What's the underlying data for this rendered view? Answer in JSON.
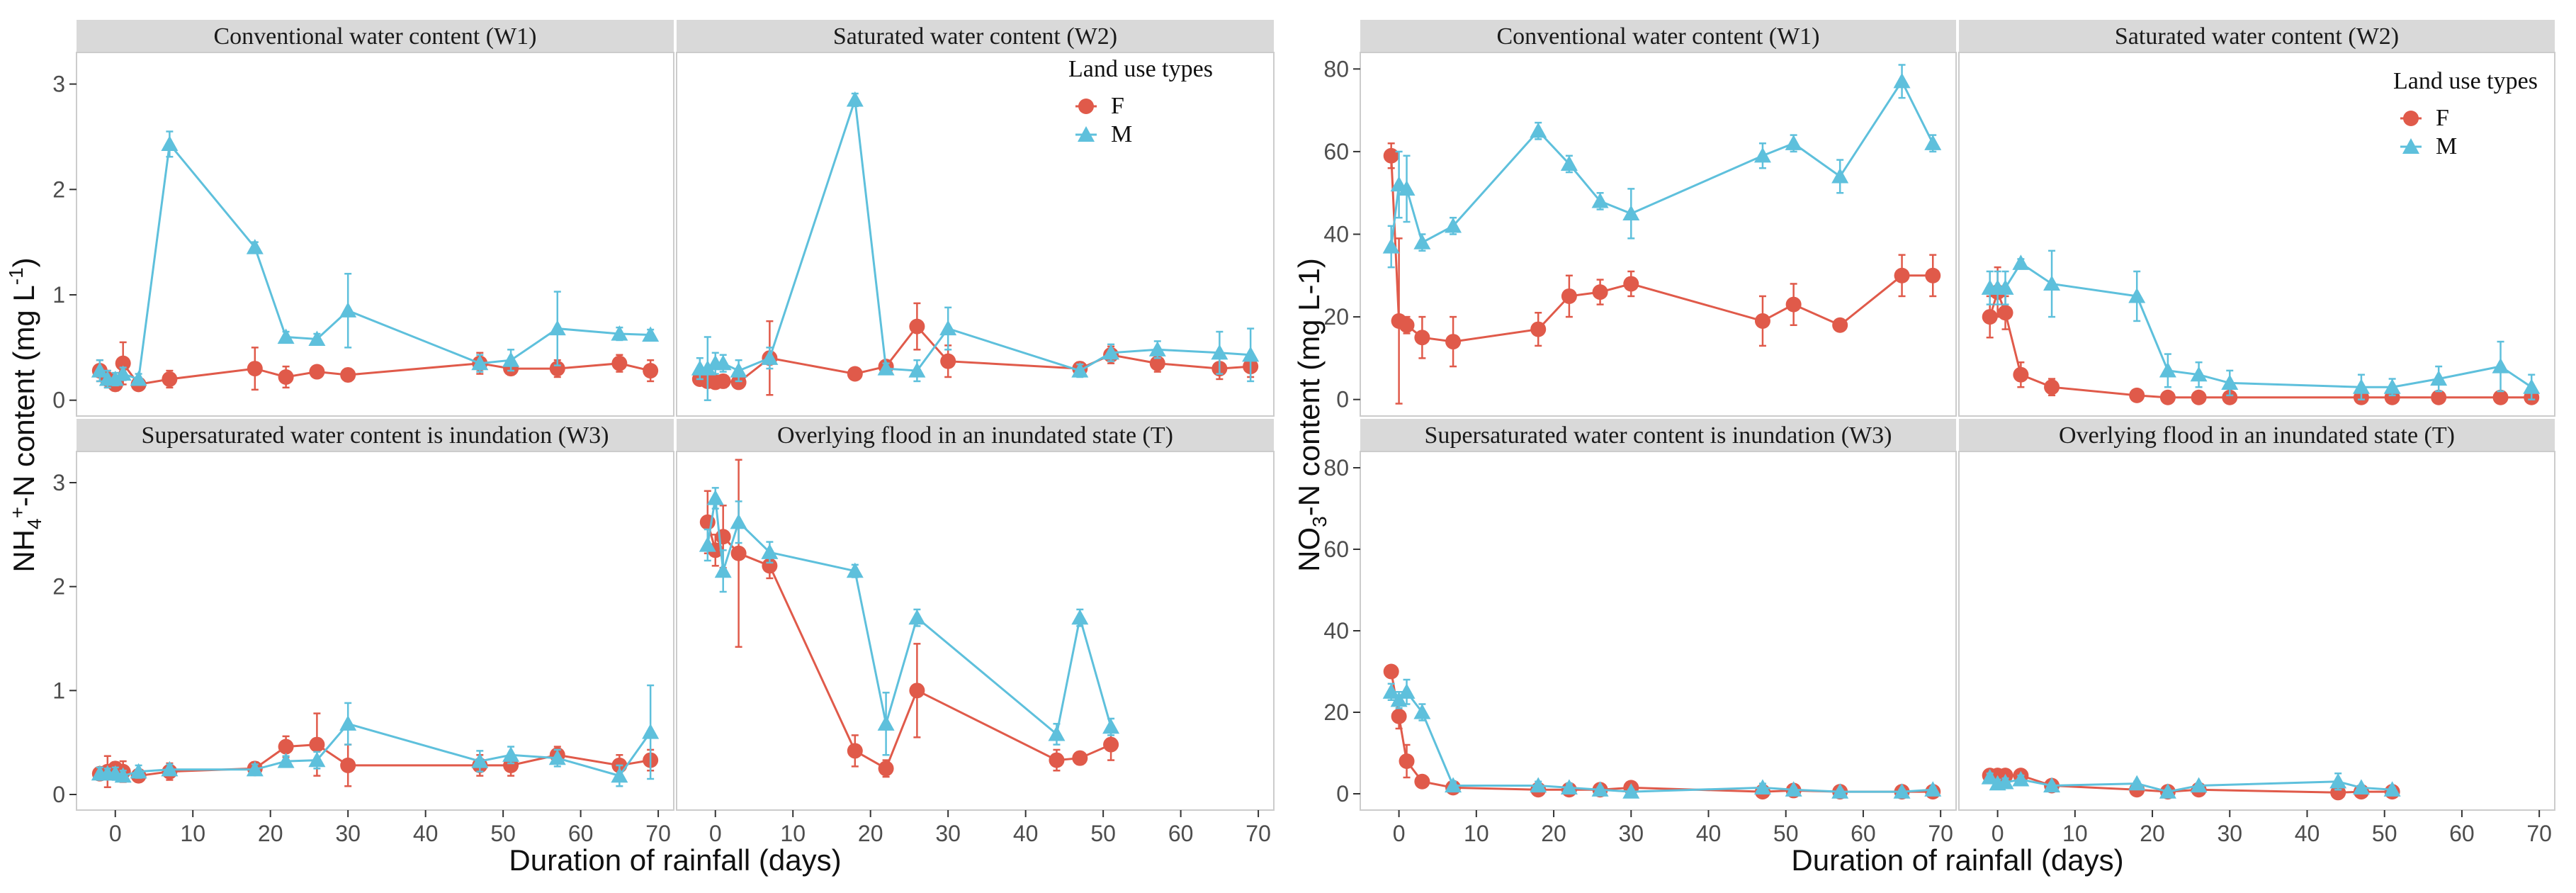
{
  "colors": {
    "F": "#e05a4a",
    "M": "#5ec0dc",
    "strip_bg": "#d9d9d9",
    "panel_border": "#cccccc",
    "axis": "#333333"
  },
  "chart_data": [
    {
      "type": "line",
      "name": "nh4",
      "ylabel": "NH4+-N content (mg L-1)",
      "ylabel_parts": {
        "main": "NH",
        "sub": "4",
        "sup": "+",
        "rest": "-N content (mg L",
        "unit_sup": "-1",
        "close": ")"
      },
      "xlabel": "Duration of rainfall (days)",
      "xlim": [
        -5,
        72
      ],
      "ylim": [
        -0.15,
        3.3
      ],
      "yticks": [
        0,
        1,
        2,
        3
      ],
      "xticks": [
        0,
        10,
        20,
        30,
        40,
        50,
        60,
        70
      ],
      "legend": {
        "title": "Land use types",
        "items": [
          "F",
          "M"
        ],
        "position": "top-right"
      },
      "panels": [
        {
          "title": "Conventional water content (W1)",
          "series": [
            {
              "name": "F",
              "x": [
                -2,
                -1,
                0,
                1,
                3,
                7,
                18,
                22,
                26,
                30,
                47,
                51,
                57,
                65,
                69
              ],
              "y": [
                0.28,
                0.2,
                0.15,
                0.35,
                0.15,
                0.2,
                0.3,
                0.22,
                0.27,
                0.24,
                0.35,
                0.3,
                0.3,
                0.35,
                0.28
              ],
              "err": [
                0.1,
                0.08,
                0.06,
                0.2,
                0.05,
                0.08,
                0.2,
                0.1,
                0.05,
                0.06,
                0.1,
                0.06,
                0.08,
                0.08,
                0.1
              ]
            },
            {
              "name": "M",
              "x": [
                -2,
                -1,
                0,
                1,
                3,
                7,
                18,
                22,
                26,
                30,
                47,
                51,
                57,
                65,
                69
              ],
              "y": [
                0.28,
                0.2,
                0.2,
                0.25,
                0.2,
                2.43,
                1.45,
                0.6,
                0.58,
                0.85,
                0.35,
                0.38,
                0.68,
                0.63,
                0.62
              ],
              "err": [
                0.1,
                0.08,
                0.06,
                0.06,
                0.05,
                0.12,
                0.05,
                0.05,
                0.05,
                0.35,
                0.08,
                0.1,
                0.35,
                0.06,
                0.05
              ]
            }
          ]
        },
        {
          "title": "Saturated water content (W2)",
          "series": [
            {
              "name": "F",
              "x": [
                -2,
                -1,
                0,
                1,
                3,
                7,
                18,
                22,
                26,
                30,
                47,
                51,
                57,
                65,
                69
              ],
              "y": [
                0.2,
                0.18,
                0.17,
                0.18,
                0.17,
                0.4,
                0.25,
                0.32,
                0.7,
                0.37,
                0.3,
                0.43,
                0.35,
                0.3,
                0.32
              ],
              "err": [
                0.05,
                0.05,
                0.04,
                0.06,
                0.05,
                0.35,
                0.04,
                0.05,
                0.22,
                0.15,
                0.06,
                0.08,
                0.08,
                0.1,
                0.1
              ]
            },
            {
              "name": "M",
              "x": [
                -2,
                -1,
                0,
                1,
                3,
                7,
                18,
                22,
                26,
                30,
                47,
                51,
                57,
                65,
                69
              ],
              "y": [
                0.3,
                0.3,
                0.35,
                0.35,
                0.28,
                0.4,
                2.85,
                0.3,
                0.28,
                0.68,
                0.28,
                0.45,
                0.48,
                0.45,
                0.43
              ],
              "err": [
                0.1,
                0.3,
                0.1,
                0.08,
                0.1,
                0.1,
                0.06,
                0.05,
                0.1,
                0.2,
                0.06,
                0.08,
                0.08,
                0.2,
                0.25
              ]
            }
          ]
        },
        {
          "title": "Supersaturated water content is  inundation (W3)",
          "series": [
            {
              "name": "F",
              "x": [
                -2,
                -1,
                0,
                1,
                3,
                7,
                18,
                22,
                26,
                30,
                47,
                51,
                57,
                65,
                69
              ],
              "y": [
                0.2,
                0.22,
                0.25,
                0.22,
                0.18,
                0.22,
                0.25,
                0.46,
                0.48,
                0.28,
                0.28,
                0.28,
                0.38,
                0.28,
                0.33
              ],
              "err": [
                0.06,
                0.15,
                0.06,
                0.1,
                0.06,
                0.08,
                0.06,
                0.1,
                0.3,
                0.2,
                0.1,
                0.1,
                0.08,
                0.1,
                0.1
              ]
            },
            {
              "name": "M",
              "x": [
                -2,
                -1,
                0,
                1,
                3,
                7,
                18,
                22,
                26,
                30,
                47,
                51,
                57,
                65,
                69
              ],
              "y": [
                0.2,
                0.2,
                0.2,
                0.18,
                0.22,
                0.24,
                0.24,
                0.32,
                0.33,
                0.68,
                0.32,
                0.38,
                0.35,
                0.18,
                0.6
              ],
              "err": [
                0.06,
                0.05,
                0.06,
                0.05,
                0.06,
                0.05,
                0.05,
                0.05,
                0.08,
                0.2,
                0.1,
                0.08,
                0.08,
                0.1,
                0.45
              ]
            }
          ]
        },
        {
          "title": "Overlying flood in an inundated state (T)",
          "series": [
            {
              "name": "F",
              "x": [
                -1,
                0,
                1,
                3,
                7,
                18,
                22,
                26,
                44,
                47,
                51
              ],
              "y": [
                2.62,
                2.35,
                2.48,
                2.32,
                2.2,
                0.42,
                0.25,
                1.0,
                0.33,
                0.35,
                0.48
              ],
              "err": [
                0.3,
                0.15,
                0.3,
                0.9,
                0.12,
                0.15,
                0.08,
                0.45,
                0.1,
                0.06,
                0.15
              ]
            },
            {
              "name": "M",
              "x": [
                -1,
                0,
                1,
                3,
                7,
                18,
                22,
                26,
                44,
                47,
                51
              ],
              "y": [
                2.4,
                2.85,
                2.15,
                2.62,
                2.33,
                2.15,
                0.68,
                1.7,
                0.58,
                1.7,
                0.65
              ],
              "err": [
                0.15,
                0.1,
                0.2,
                0.2,
                0.1,
                0.06,
                0.3,
                0.08,
                0.1,
                0.08,
                0.08
              ]
            }
          ]
        }
      ]
    },
    {
      "type": "line",
      "name": "no3",
      "ylabel": "NO3--N content (mg L-1)",
      "ylabel_parts": {
        "main": "NO",
        "sub": "3",
        "sup": "",
        "rest": "-N content (mg L-1)",
        "unit_sup": "",
        "close": ""
      },
      "xlabel": "Duration of rainfall (days)",
      "xlim": [
        -5,
        72
      ],
      "ylim": [
        -4,
        84
      ],
      "yticks": [
        0,
        20,
        40,
        60,
        80
      ],
      "xticks": [
        0,
        10,
        20,
        30,
        40,
        50,
        60,
        70
      ],
      "legend": {
        "title": "Land use types",
        "items": [
          "F",
          "M"
        ],
        "position": "top-right"
      },
      "panels": [
        {
          "title": "Conventional water content (W1)",
          "series": [
            {
              "name": "F",
              "x": [
                -1,
                0,
                1,
                3,
                7,
                18,
                22,
                26,
                30,
                47,
                51,
                57,
                65,
                69
              ],
              "y": [
                59,
                19,
                18,
                15,
                14,
                17,
                25,
                26,
                28,
                19,
                23,
                18,
                30,
                30
              ],
              "err": [
                3,
                20,
                2,
                5,
                6,
                4,
                5,
                3,
                3,
                6,
                5,
                1,
                5,
                5
              ]
            },
            {
              "name": "M",
              "x": [
                -1,
                0,
                1,
                3,
                7,
                18,
                22,
                26,
                30,
                47,
                51,
                57,
                65,
                69
              ],
              "y": [
                37,
                52,
                51,
                38,
                42,
                65,
                57,
                48,
                45,
                59,
                62,
                54,
                77,
                62
              ],
              "err": [
                5,
                8,
                8,
                2,
                2,
                2,
                2,
                2,
                6,
                3,
                2,
                4,
                4,
                2
              ]
            }
          ]
        },
        {
          "title": "Saturated water content (W2)",
          "series": [
            {
              "name": "F",
              "x": [
                -1,
                0,
                1,
                3,
                7,
                18,
                22,
                26,
                30,
                47,
                51,
                57,
                65,
                69
              ],
              "y": [
                20,
                26,
                21,
                6,
                3,
                1,
                0.5,
                0.5,
                0.5,
                0.5,
                0.5,
                0.5,
                0.5,
                0.5
              ],
              "err": [
                5,
                6,
                4,
                3,
                2,
                1,
                0.5,
                0.5,
                0.5,
                0.5,
                0.5,
                0.5,
                0.5,
                0.5
              ]
            },
            {
              "name": "M",
              "x": [
                -1,
                0,
                1,
                3,
                7,
                18,
                22,
                26,
                30,
                47,
                51,
                57,
                65,
                69
              ],
              "y": [
                27,
                27,
                27,
                33,
                28,
                25,
                7,
                6,
                4,
                3,
                3,
                5,
                8,
                3
              ],
              "err": [
                4,
                4,
                4,
                1,
                8,
                6,
                4,
                3,
                3,
                3,
                2,
                3,
                6,
                3
              ]
            }
          ]
        },
        {
          "title": "Supersaturated water content is  inundation (W3)",
          "series": [
            {
              "name": "F",
              "x": [
                -1,
                0,
                1,
                3,
                7,
                18,
                22,
                26,
                30,
                47,
                51,
                57,
                65,
                69
              ],
              "y": [
                30,
                19,
                8,
                3,
                1.5,
                1,
                1,
                1,
                1.5,
                0.5,
                0.8,
                0.5,
                0.5,
                0.5
              ],
              "err": [
                1,
                3,
                4,
                1,
                1,
                0.5,
                0.5,
                0.5,
                0.5,
                0.5,
                0.5,
                0.5,
                0.5,
                0.5
              ]
            },
            {
              "name": "M",
              "x": [
                -1,
                0,
                1,
                3,
                7,
                18,
                22,
                26,
                30,
                47,
                51,
                57,
                65,
                69
              ],
              "y": [
                25,
                23,
                25,
                20,
                2,
                2,
                1.5,
                1,
                0.5,
                1.5,
                1,
                0.5,
                0.5,
                1
              ],
              "err": [
                2,
                2,
                3,
                2,
                1,
                1,
                1,
                0.5,
                0.5,
                1,
                0.5,
                0.5,
                0.5,
                0.5
              ]
            }
          ]
        },
        {
          "title": "Overlying flood in an inundated state (T)",
          "series": [
            {
              "name": "F",
              "x": [
                -1,
                0,
                1,
                3,
                7,
                18,
                22,
                26,
                44,
                47,
                51
              ],
              "y": [
                4.5,
                4.5,
                4.5,
                4.5,
                2,
                1,
                0.5,
                1,
                0.3,
                0.5,
                0.5
              ],
              "err": [
                1,
                1,
                1,
                1,
                0.5,
                0.5,
                0.5,
                0.5,
                0.5,
                0.5,
                0.5
              ]
            },
            {
              "name": "M",
              "x": [
                -1,
                0,
                1,
                3,
                7,
                18,
                22,
                26,
                44,
                47,
                51
              ],
              "y": [
                4,
                2.5,
                2.8,
                3.5,
                2,
                2.5,
                0.5,
                2,
                3,
                1.5,
                1
              ],
              "err": [
                1,
                1,
                1,
                1,
                0.5,
                0.5,
                0.5,
                0.5,
                2,
                0.5,
                0.5
              ]
            }
          ]
        }
      ]
    }
  ]
}
